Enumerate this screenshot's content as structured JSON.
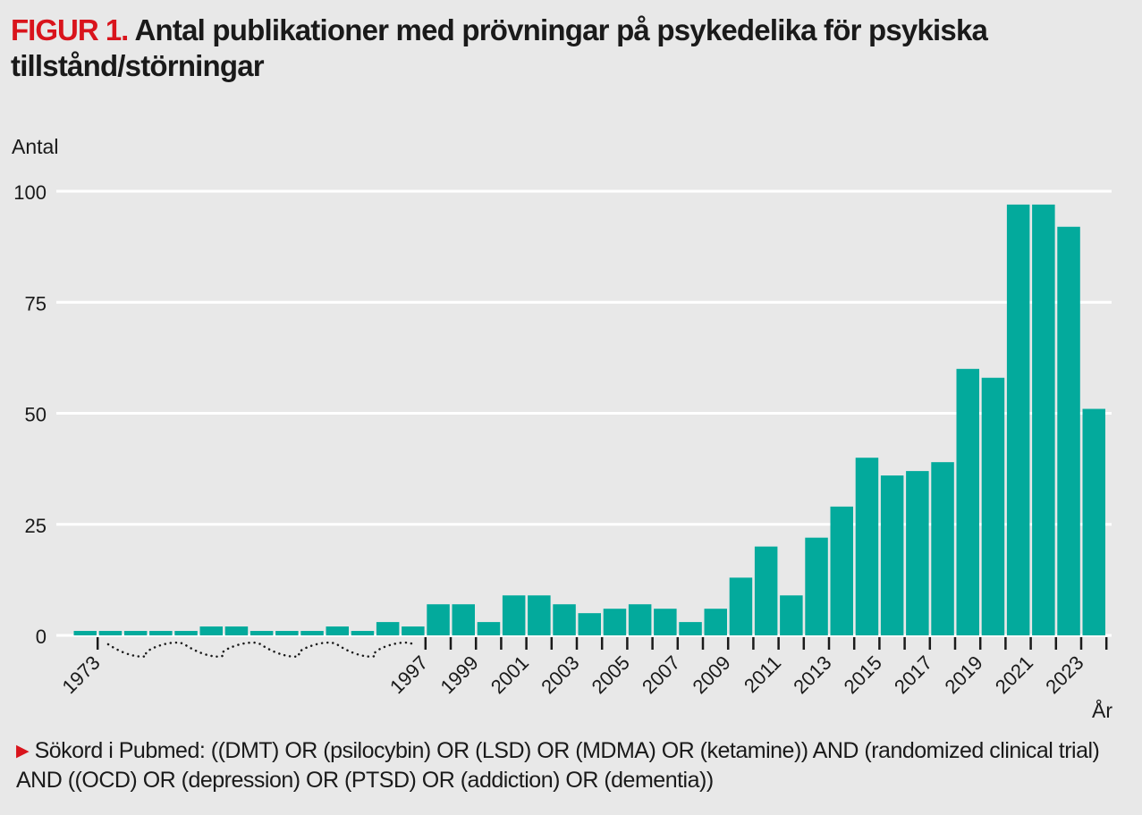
{
  "title": {
    "figure_label": "FIGUR 1.",
    "text": "Antal publikationer med prövningar på psykedelika för psykiska tillstånd/störningar"
  },
  "footnote": {
    "marker_icon": "red-triangle-icon",
    "text": "Sökord i Pubmed: ((DMT) OR (psilocybin) OR (LSD) OR (MDMA) OR (ketamine)) AND (randomized clinical trial) AND ((OCD) OR (depression) OR (PTSD) OR (addiction) OR (dementia))"
  },
  "colors": {
    "bar": "#03aa9c",
    "accent": "#d9141c",
    "background": "#e8e8e8",
    "grid": "#ffffff"
  },
  "chart_data": {
    "type": "bar",
    "title": "Antal publikationer med prövningar på psykedelika för psykiska tillstånd/störningar",
    "xlabel": "År",
    "ylabel": "Antal",
    "ylim": [
      0,
      100
    ],
    "yticks": [
      0,
      25,
      50,
      75,
      100
    ],
    "grid": true,
    "axis_break": "1973–1996 (compressed, wavy dotted line)",
    "categories": [
      "1973",
      "",
      "",
      "",
      "",
      "",
      "",
      "",
      "",
      "",
      "",
      "",
      "",
      "",
      "1997",
      "1998",
      "1999",
      "2000",
      "2001",
      "2002",
      "2003",
      "2004",
      "2005",
      "2006",
      "2007",
      "2008",
      "2009",
      "2010",
      "2011",
      "2012",
      "2013",
      "2014",
      "2015",
      "2016",
      "2017",
      "2018",
      "2019",
      "2020",
      "2021",
      "2022",
      "2023"
    ],
    "xtick_labels": [
      "1973",
      "1997",
      "1999",
      "2001",
      "2003",
      "2005",
      "2007",
      "2009",
      "2011",
      "2013",
      "2015",
      "2017",
      "2019",
      "2021",
      "2023"
    ],
    "values": [
      1,
      1,
      1,
      1,
      1,
      2,
      2,
      1,
      1,
      1,
      2,
      1,
      3,
      2,
      7,
      7,
      3,
      9,
      9,
      7,
      5,
      6,
      7,
      6,
      3,
      6,
      13,
      20,
      9,
      22,
      29,
      40,
      36,
      37,
      39,
      60,
      58,
      97,
      97,
      92,
      51
    ]
  }
}
